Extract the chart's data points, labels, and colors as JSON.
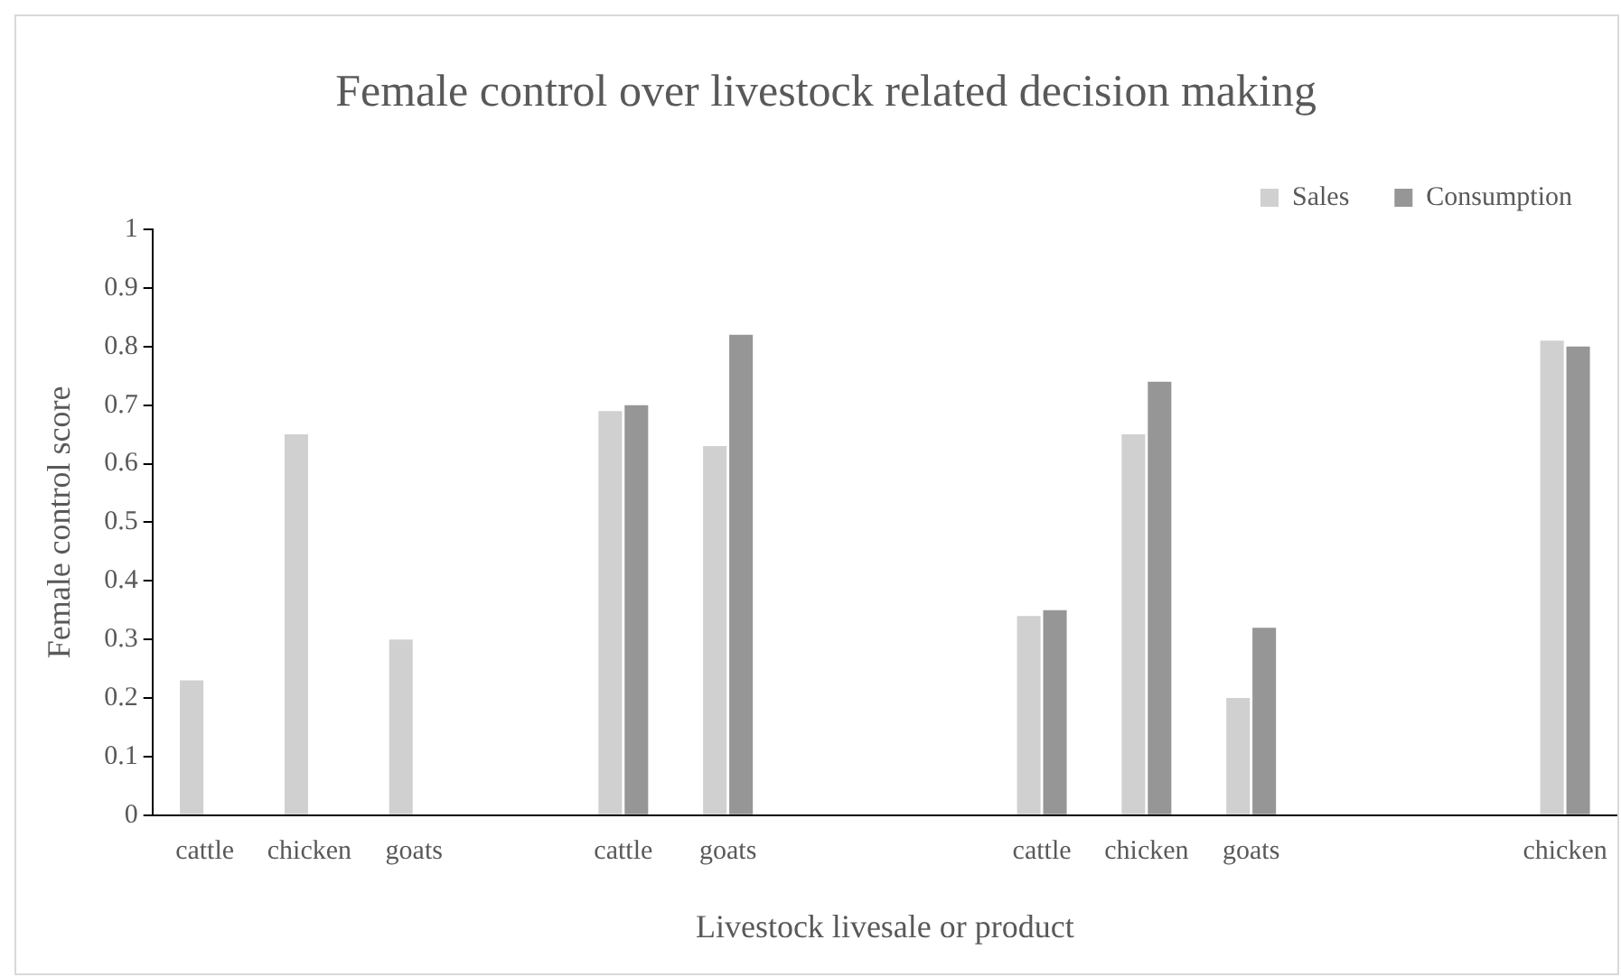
{
  "chart_data": {
    "type": "bar",
    "title": "Female control over livestock related decision making",
    "xlabel": "Livestock livesale or product",
    "ylabel": "Female control score",
    "categories": [
      "cattle",
      "chicken",
      "goats",
      null,
      "cattle",
      "goats",
      null,
      null,
      "cattle",
      "chicken",
      "goats",
      null,
      null,
      "chicken"
    ],
    "series": [
      {
        "name": "Sales",
        "color": "#d0d0d0",
        "values": [
          0.23,
          0.65,
          0.3,
          null,
          0.69,
          0.63,
          null,
          null,
          0.34,
          0.65,
          0.2,
          null,
          null,
          0.81
        ]
      },
      {
        "name": "Consumption",
        "color": "#969696",
        "values": [
          null,
          null,
          null,
          null,
          0.7,
          0.82,
          null,
          null,
          0.35,
          0.74,
          0.32,
          null,
          null,
          0.8
        ]
      }
    ],
    "ylim": [
      0,
      1
    ],
    "yticks": [
      0,
      0.1,
      0.2,
      0.3,
      0.4,
      0.5,
      0.6,
      0.7,
      0.8,
      0.9,
      1
    ],
    "grid": false,
    "legend": "top right"
  }
}
